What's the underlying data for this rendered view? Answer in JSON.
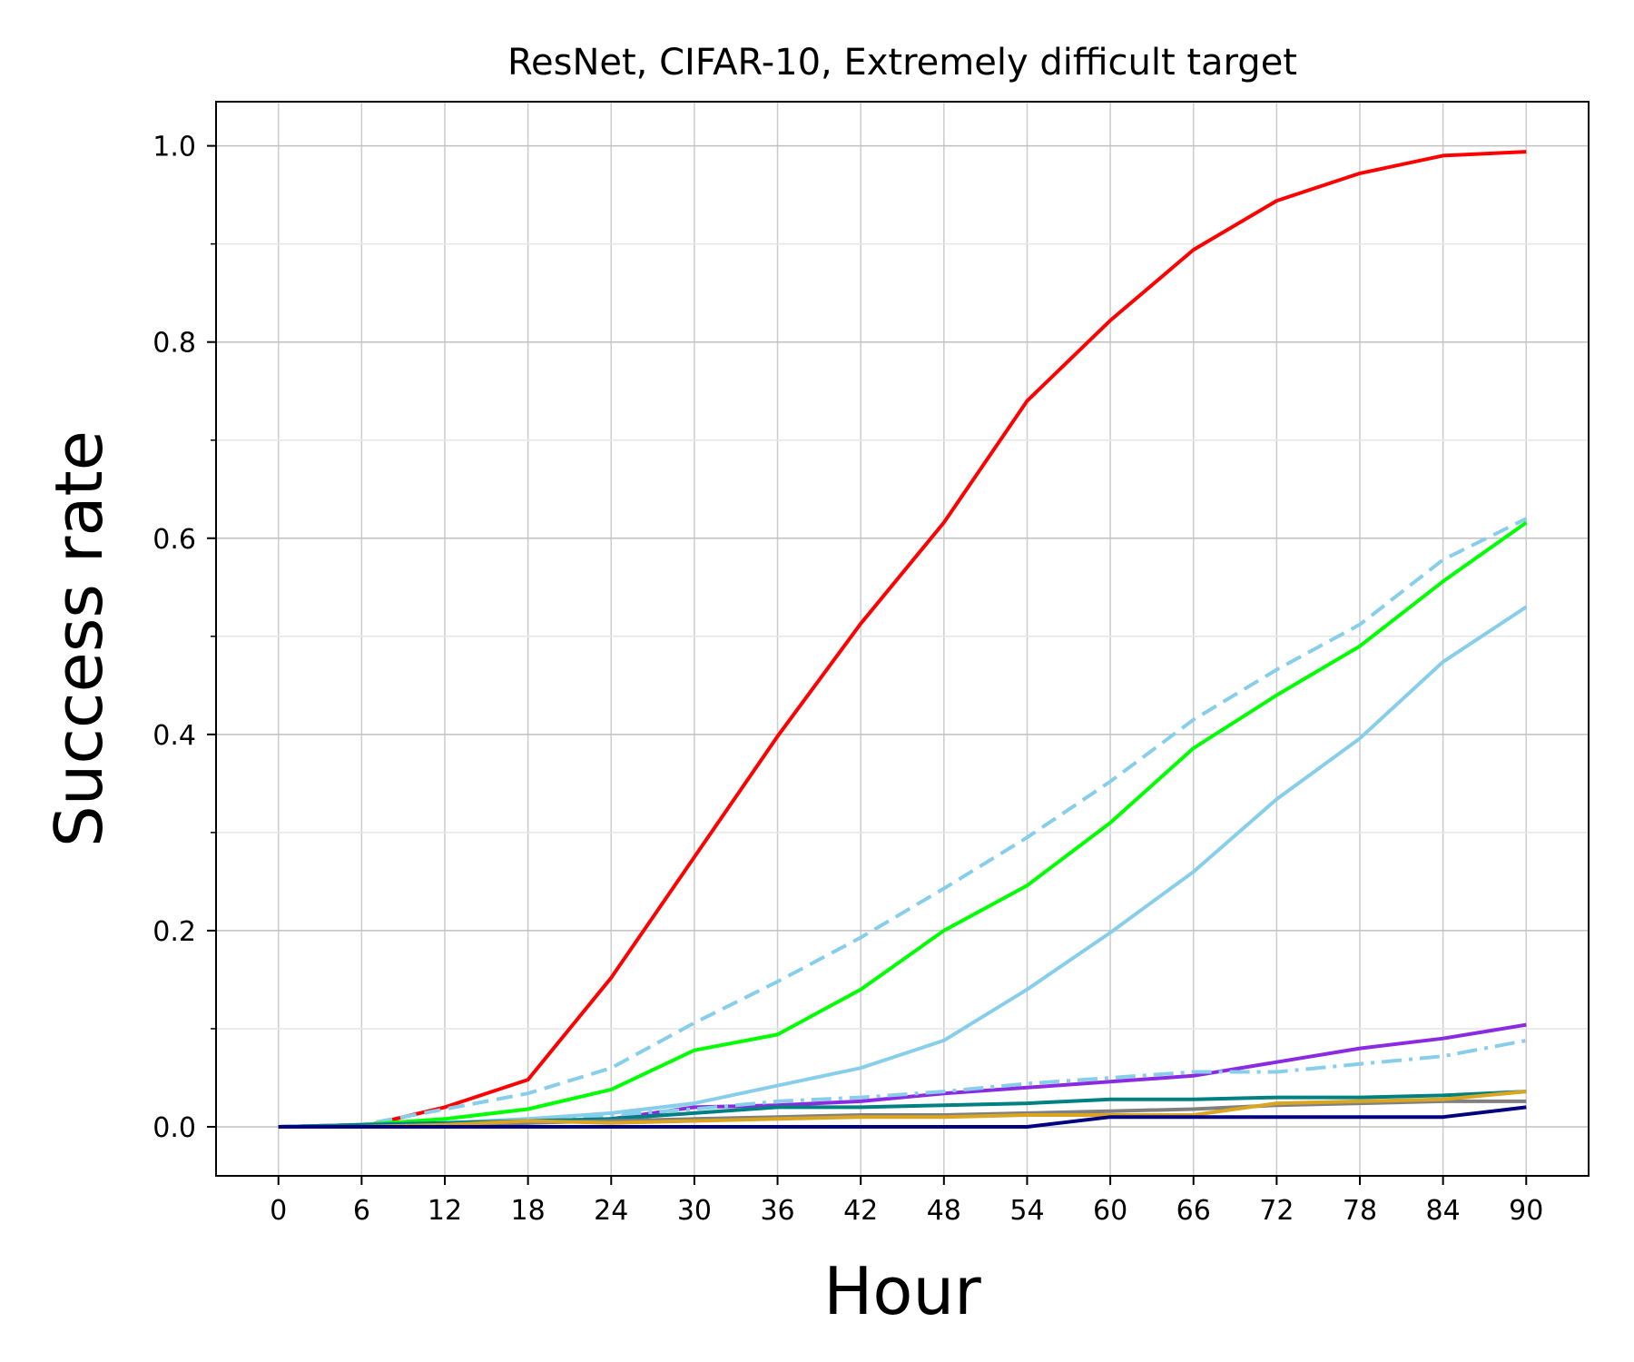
{
  "chart_data": {
    "type": "line",
    "title": "ResNet, CIFAR-10, Extremely difficult target",
    "xlabel": "Hour",
    "ylabel": "Success rate",
    "x": [
      0,
      6,
      12,
      18,
      24,
      30,
      36,
      42,
      48,
      54,
      60,
      66,
      72,
      78,
      84,
      90
    ],
    "x_ticks": [
      "0",
      "6",
      "12",
      "18",
      "24",
      "30",
      "36",
      "42",
      "48",
      "54",
      "60",
      "66",
      "72",
      "78",
      "84",
      "90"
    ],
    "xlim": [
      -4.5,
      94.5
    ],
    "ylim": [
      -0.05,
      1.045
    ],
    "y_major_ticks": [
      "0.0",
      "0.2",
      "0.4",
      "0.6",
      "0.8",
      "1.0"
    ],
    "y_minor_step": 0.1,
    "grid": true,
    "series": [
      {
        "color": "#ff0000",
        "dash": "solid",
        "values": [
          0.0,
          0.0,
          0.02,
          0.048,
          0.152,
          0.275,
          0.398,
          0.513,
          0.616,
          0.74,
          0.822,
          0.894,
          0.944,
          0.972,
          0.99,
          0.994
        ]
      },
      {
        "color": "#87ceeb",
        "dash": "dashed",
        "values": [
          0.0,
          0.002,
          0.018,
          0.034,
          0.06,
          0.106,
          0.148,
          0.193,
          0.243,
          0.295,
          0.352,
          0.415,
          0.466,
          0.512,
          0.578,
          0.62
        ]
      },
      {
        "color": "#00ff00",
        "dash": "solid",
        "values": [
          0.0,
          0.002,
          0.008,
          0.018,
          0.038,
          0.078,
          0.094,
          0.14,
          0.2,
          0.246,
          0.31,
          0.386,
          0.44,
          0.49,
          0.556,
          0.616
        ]
      },
      {
        "color": "#87ceeb",
        "dash": "solid",
        "values": [
          0.0,
          0.002,
          0.004,
          0.008,
          0.014,
          0.024,
          0.042,
          0.06,
          0.088,
          0.14,
          0.198,
          0.26,
          0.334,
          0.396,
          0.474,
          0.53
        ]
      },
      {
        "color": "#8a2be2",
        "dash": "solid",
        "values": [
          0.0,
          0.002,
          0.002,
          0.004,
          0.008,
          0.02,
          0.022,
          0.026,
          0.034,
          0.04,
          0.046,
          0.052,
          0.066,
          0.08,
          0.09,
          0.104
        ]
      },
      {
        "color": "#87ceeb",
        "dash": "dashdot",
        "values": [
          0.0,
          0.002,
          0.004,
          0.008,
          0.012,
          0.018,
          0.026,
          0.03,
          0.036,
          0.044,
          0.05,
          0.056,
          0.056,
          0.064,
          0.072,
          0.088
        ]
      },
      {
        "color": "#008080",
        "dash": "solid",
        "values": [
          0.0,
          0.002,
          0.004,
          0.006,
          0.008,
          0.014,
          0.02,
          0.02,
          0.022,
          0.024,
          0.028,
          0.028,
          0.03,
          0.03,
          0.032,
          0.036
        ]
      },
      {
        "color": "#808080",
        "dash": "solid",
        "values": [
          0.0,
          0.0,
          0.002,
          0.004,
          0.006,
          0.008,
          0.01,
          0.012,
          0.012,
          0.014,
          0.016,
          0.018,
          0.022,
          0.024,
          0.026,
          0.026
        ]
      },
      {
        "color": "#daa520",
        "dash": "solid",
        "values": [
          0.0,
          0.0,
          0.002,
          0.006,
          0.004,
          0.006,
          0.008,
          0.01,
          0.01,
          0.012,
          0.012,
          0.012,
          0.024,
          0.026,
          0.028,
          0.036
        ]
      },
      {
        "color": "#000080",
        "dash": "solid",
        "values": [
          0.0,
          0.0,
          0.0,
          0.0,
          0.0,
          0.0,
          0.0,
          0.0,
          0.0,
          0.0,
          0.01,
          0.01,
          0.01,
          0.01,
          0.01,
          0.02
        ]
      }
    ]
  }
}
